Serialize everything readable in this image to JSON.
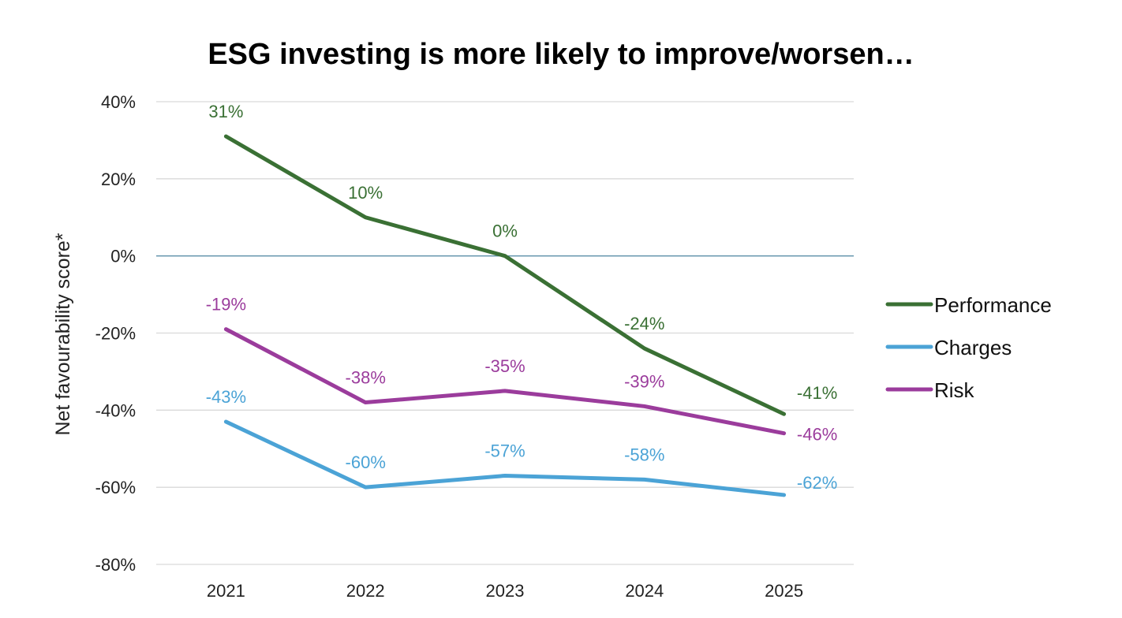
{
  "chart_data": {
    "type": "line",
    "title": "ESG investing is more likely to improve/worsen…",
    "xlabel": "",
    "ylabel": "Net favourability score*",
    "categories": [
      "2021",
      "2022",
      "2023",
      "2024",
      "2025"
    ],
    "ylim": [
      -80,
      40
    ],
    "yticks": [
      40,
      20,
      0,
      -20,
      -40,
      -60,
      -80
    ],
    "ytick_labels": [
      "40%",
      "20%",
      "0%",
      "-20%",
      "-40%",
      "-60%",
      "-80%"
    ],
    "grid": true,
    "legend": "right",
    "series": [
      {
        "name": "Performance",
        "color": "#3a7034",
        "values": [
          31,
          10,
          0,
          -24,
          -41
        ],
        "labels": [
          "31%",
          "10%",
          "0%",
          "-24%",
          "-41%"
        ]
      },
      {
        "name": "Charges",
        "color": "#4ba3d6",
        "values": [
          -43,
          -60,
          -57,
          -58,
          -62
        ],
        "labels": [
          "-43%",
          "-60%",
          "-57%",
          "-58%",
          "-62%"
        ]
      },
      {
        "name": "Risk",
        "color": "#9b3c9c",
        "values": [
          -19,
          -38,
          -35,
          -39,
          -46
        ],
        "labels": [
          "-19%",
          "-38%",
          "-35%",
          "-39%",
          "-46%"
        ]
      }
    ]
  }
}
